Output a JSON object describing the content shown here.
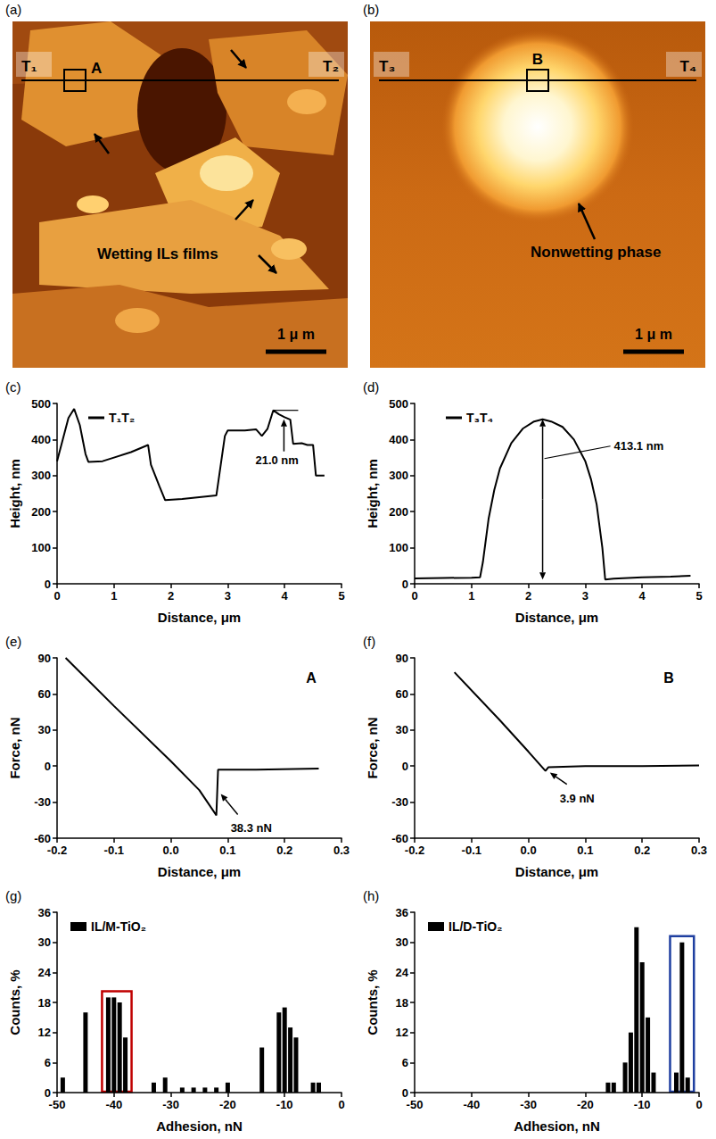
{
  "images": [
    {
      "panel": "(a)",
      "markers": [
        "T₁",
        "T₂"
      ],
      "box_label": "A",
      "note": "Wetting ILs films",
      "scale_bar": "1 μ m"
    },
    {
      "panel": "(b)",
      "markers": [
        "T₃",
        "T₄"
      ],
      "box_label": "B",
      "note": "Nonwetting phase",
      "scale_bar": "1 μ m"
    }
  ],
  "chart_data": [
    {
      "panel": "(c)",
      "type": "line",
      "x": [
        0,
        0.1,
        0.2,
        0.3,
        0.4,
        0.5,
        0.55,
        0.8,
        1.0,
        1.3,
        1.6,
        1.65,
        1.8,
        1.9,
        2.2,
        2.5,
        2.8,
        2.85,
        2.95,
        3.0,
        3.3,
        3.5,
        3.6,
        3.7,
        3.8,
        3.9,
        4.0,
        4.1,
        4.15,
        4.3,
        4.4,
        4.5,
        4.55,
        4.7
      ],
      "series": [
        {
          "name": "T₁T₂",
          "color": "#000000",
          "values": [
            340,
            400,
            460,
            485,
            440,
            360,
            338,
            340,
            350,
            365,
            385,
            330,
            270,
            232,
            235,
            240,
            245,
            300,
            410,
            425,
            425,
            428,
            410,
            430,
            481,
            470,
            462,
            455,
            388,
            390,
            385,
            385,
            300,
            300
          ]
        }
      ],
      "x_label": "Distance, μm",
      "y_label": "Height, nm",
      "xlim": [
        0,
        5
      ],
      "xticks": [
        0,
        1,
        2,
        3,
        4,
        5
      ],
      "ylim": [
        0,
        500
      ],
      "yticks": [
        0,
        100,
        200,
        300,
        400,
        500
      ],
      "annotations": [
        "21.0 nm"
      ],
      "legend": "top-left",
      "grid": false
    },
    {
      "panel": "(d)",
      "type": "line",
      "x": [
        0,
        0.5,
        1.0,
        1.15,
        1.2,
        1.3,
        1.4,
        1.5,
        1.7,
        1.9,
        2.1,
        2.25,
        2.4,
        2.6,
        2.8,
        3.0,
        3.1,
        3.2,
        3.3,
        3.35,
        3.5,
        4.0,
        4.5,
        4.85
      ],
      "series": [
        {
          "name": "T₃T₄",
          "color": "#000000",
          "values": [
            15,
            16,
            17,
            18,
            60,
            180,
            260,
            320,
            390,
            430,
            450,
            456,
            450,
            435,
            400,
            340,
            290,
            220,
            100,
            12,
            14,
            18,
            20,
            22
          ]
        }
      ],
      "x_label": "Distance, μm",
      "y_label": "Height, nm",
      "xlim": [
        0,
        5
      ],
      "xticks": [
        0,
        1,
        2,
        3,
        4,
        5
      ],
      "ylim": [
        0,
        500
      ],
      "yticks": [
        0,
        100,
        200,
        300,
        400,
        500
      ],
      "annotations": [
        "413.1 nm"
      ],
      "legend": "top-left",
      "grid": false
    },
    {
      "panel": "(e)",
      "type": "line",
      "title": "A",
      "x": [
        -0.185,
        -0.1,
        0,
        0.05,
        0.08,
        0.083,
        0.15,
        0.26
      ],
      "series": [
        {
          "color": "#000000",
          "values": [
            90,
            50,
            4,
            -20,
            -41,
            -3,
            -3,
            -2
          ]
        }
      ],
      "x_label": "Distance, μm",
      "y_label": "Force, nN",
      "xlim": [
        -0.2,
        0.3
      ],
      "xticks": [
        -0.2,
        -0.1,
        {
          "value": 0,
          "label": "0.0"
        },
        0.1,
        0.2,
        0.3
      ],
      "ylim": [
        -60,
        90
      ],
      "yticks": [
        -60,
        -30,
        0,
        30,
        60,
        90
      ],
      "annotations": [
        "38.3 nN"
      ],
      "grid": false
    },
    {
      "panel": "(f)",
      "type": "line",
      "title": "B",
      "x": [
        -0.13,
        -0.05,
        0,
        0.03,
        0.035,
        0.1,
        0.2,
        0.3
      ],
      "series": [
        {
          "color": "#000000",
          "values": [
            78,
            38,
            12,
            -4,
            -1,
            0,
            0,
            0.5
          ]
        }
      ],
      "x_label": "Distance, μm",
      "y_label": "Force, nN",
      "xlim": [
        -0.2,
        0.3
      ],
      "xticks": [
        -0.2,
        -0.1,
        {
          "value": 0,
          "label": "0.0"
        },
        0.1,
        0.2,
        0.3
      ],
      "ylim": [
        -60,
        90
      ],
      "yticks": [
        -60,
        -30,
        0,
        30,
        60,
        90
      ],
      "annotations": [
        "3.9 nN"
      ],
      "grid": false
    },
    {
      "panel": "(g)",
      "type": "bar",
      "x": [
        -49,
        -45,
        -41,
        -40,
        -39,
        -38,
        -33,
        -31,
        -28,
        -26,
        -24,
        -22,
        -20,
        -14,
        -11,
        -10,
        -9,
        -8,
        -5,
        -4
      ],
      "series": [
        {
          "name": "IL/M-TiO₂",
          "color": "#000000",
          "values": [
            3,
            16,
            19,
            19,
            18,
            11,
            2,
            3,
            1,
            1,
            1,
            1,
            2,
            9,
            16,
            17,
            13,
            11,
            2,
            2
          ]
        }
      ],
      "x_label": "Adhesion, nN",
      "y_label": "Counts, %",
      "xlim": [
        -50,
        0
      ],
      "xticks": [
        -50,
        -40,
        -30,
        -20,
        -10,
        0
      ],
      "ylim": [
        0,
        36
      ],
      "yticks": [
        0,
        6,
        12,
        18,
        24,
        30,
        36
      ],
      "legend": "top-left",
      "grid": false
    },
    {
      "panel": "(h)",
      "type": "bar",
      "x": [
        -16,
        -15,
        -13,
        -12,
        -11,
        -10,
        -9,
        -8,
        -4,
        -3,
        -2
      ],
      "series": [
        {
          "name": "IL/D-TiO₂",
          "color": "#000000",
          "values": [
            2,
            2,
            6,
            12,
            33,
            26,
            15,
            4,
            4,
            30,
            3
          ]
        }
      ],
      "x_label": "Adhesion, nN",
      "y_label": "Counts, %",
      "xlim": [
        -50,
        0
      ],
      "xticks": [
        -50,
        -40,
        -30,
        -20,
        -10,
        0
      ],
      "ylim": [
        0,
        36
      ],
      "yticks": [
        0,
        6,
        12,
        18,
        24,
        30,
        36
      ],
      "legend": "top-left",
      "grid": false
    }
  ]
}
